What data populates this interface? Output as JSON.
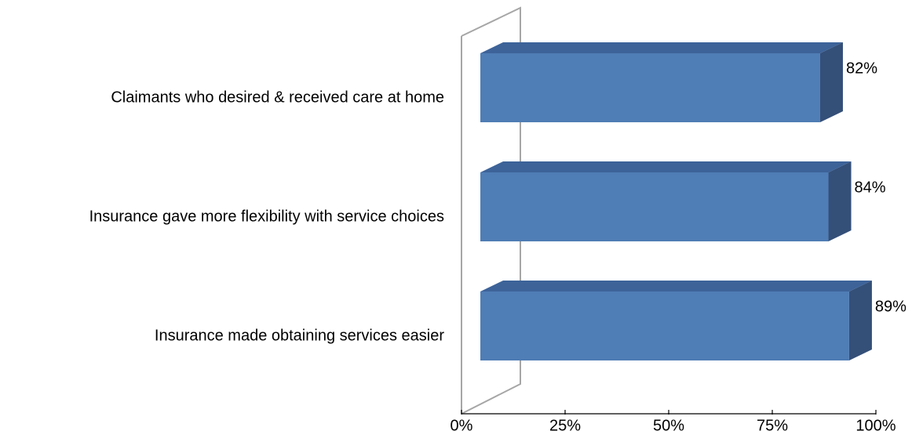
{
  "chart_data": {
    "type": "bar",
    "orientation": "horizontal",
    "style": "3d",
    "categories": [
      "Claimants who desired & received care at home",
      "Insurance gave more flexibility with service choices",
      "Insurance made obtaining services easier"
    ],
    "values": [
      82,
      84,
      89
    ],
    "data_labels": [
      "82%",
      "84%",
      "89%"
    ],
    "x_ticks": [
      "0%",
      "25%",
      "50%",
      "75%",
      "100%"
    ],
    "xlim": [
      0,
      100
    ],
    "title": "",
    "xlabel": "",
    "ylabel": "",
    "grid": false,
    "legend": "none",
    "colors": {
      "bar_front": "#4f7db5",
      "bar_top": "#3d6399",
      "bar_side": "#344f78",
      "wall_line": "#a6a6a6",
      "axis_line": "#000000",
      "text": "#000000"
    }
  }
}
